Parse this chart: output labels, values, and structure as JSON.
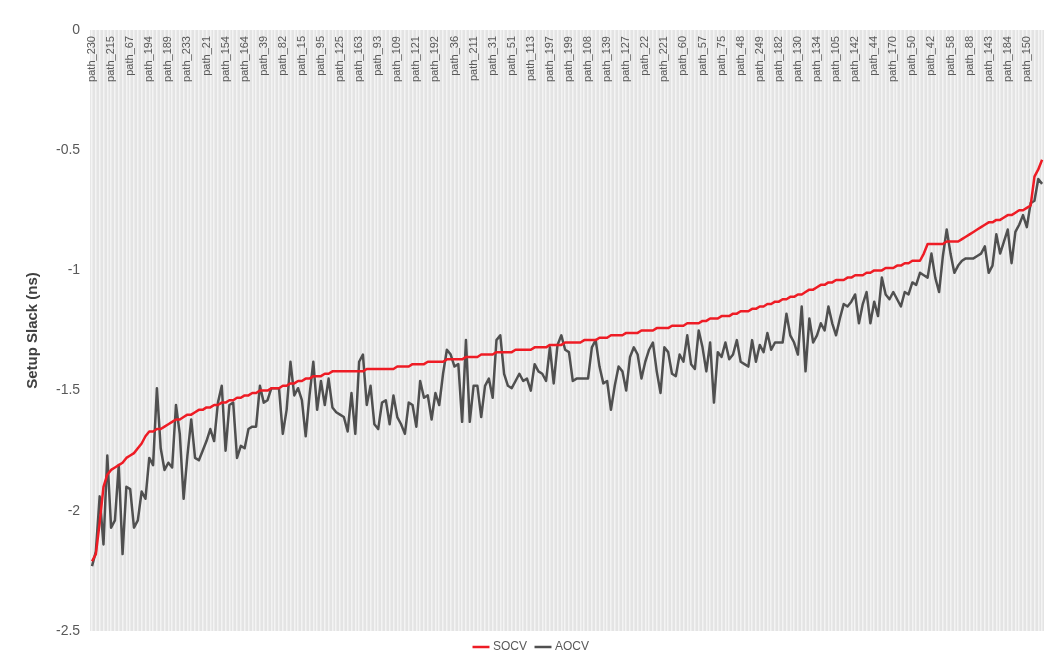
{
  "chart_data": {
    "type": "line",
    "ylabel": "Setup Slack (ns)",
    "ylim": [
      -2.5,
      0
    ],
    "yticks": [
      0,
      -0.5,
      -1,
      -1.5,
      -2,
      -2.5
    ],
    "grid": "x",
    "legend": "bottom",
    "marker": "none",
    "categories": [
      "path_230",
      null,
      null,
      null,
      null,
      "path_215",
      null,
      null,
      null,
      null,
      "path_67",
      null,
      null,
      null,
      null,
      "path_194",
      null,
      null,
      null,
      null,
      "path_189",
      null,
      null,
      null,
      null,
      "path_233",
      null,
      null,
      null,
      null,
      "path_21",
      null,
      null,
      null,
      null,
      "path_154",
      null,
      null,
      null,
      null,
      "path_164",
      null,
      null,
      null,
      null,
      "path_39",
      null,
      null,
      null,
      null,
      "path_82",
      null,
      null,
      null,
      null,
      "path_15",
      null,
      null,
      null,
      null,
      "path_95",
      null,
      null,
      null,
      null,
      "path_125",
      null,
      null,
      null,
      null,
      "path_163",
      null,
      null,
      null,
      null,
      "path_93",
      null,
      null,
      null,
      null,
      "path_109",
      null,
      null,
      null,
      null,
      "path_121",
      null,
      null,
      null,
      null,
      "path_192",
      null,
      null,
      null,
      null,
      "path_36",
      null,
      null,
      null,
      null,
      "path_211",
      null,
      null,
      null,
      null,
      "path_31",
      null,
      null,
      null,
      null,
      "path_51",
      null,
      null,
      null,
      null,
      "path_113",
      null,
      null,
      null,
      null,
      "path_197",
      null,
      null,
      null,
      null,
      "path_199",
      null,
      null,
      null,
      null,
      "path_108",
      null,
      null,
      null,
      null,
      "path_139",
      null,
      null,
      null,
      null,
      "path_127",
      null,
      null,
      null,
      null,
      "path_22",
      null,
      null,
      null,
      null,
      "path_221",
      null,
      null,
      null,
      null,
      "path_60",
      null,
      null,
      null,
      null,
      "path_57",
      null,
      null,
      null,
      null,
      "path_75",
      null,
      null,
      null,
      null,
      "path_48",
      null,
      null,
      null,
      null,
      "path_249",
      null,
      null,
      null,
      null,
      "path_182",
      null,
      null,
      null,
      null,
      "path_130",
      null,
      null,
      null,
      null,
      "path_134",
      null,
      null,
      null,
      null,
      "path_105",
      null,
      null,
      null,
      null,
      "path_142",
      null,
      null,
      null,
      null,
      "path_44",
      null,
      null,
      null,
      null,
      "path_170",
      null,
      null,
      null,
      null,
      "path_50",
      null,
      null,
      null,
      null,
      "path_42",
      null,
      null,
      null,
      null,
      "path_58",
      null,
      null,
      null,
      null,
      "path_88",
      null,
      null,
      null,
      null,
      "path_143",
      null,
      null,
      null,
      null,
      "path_184",
      null,
      null,
      null,
      null,
      "path_150",
      null,
      null,
      null,
      null
    ],
    "series": [
      {
        "name": "SOCV",
        "color": "#ee1c25",
        "values": [
          -2.21,
          -2.18,
          -2.05,
          -1.9,
          -1.85,
          -1.83,
          -1.82,
          -1.81,
          -1.8,
          -1.78,
          -1.77,
          -1.76,
          -1.74,
          -1.72,
          -1.69,
          -1.67,
          -1.67,
          -1.66,
          -1.66,
          -1.65,
          -1.64,
          -1.63,
          -1.62,
          -1.62,
          -1.61,
          -1.6,
          -1.6,
          -1.59,
          -1.58,
          -1.58,
          -1.57,
          -1.57,
          -1.56,
          -1.56,
          -1.55,
          -1.55,
          -1.54,
          -1.54,
          -1.53,
          -1.53,
          -1.52,
          -1.52,
          -1.51,
          -1.51,
          -1.5,
          -1.5,
          -1.5,
          -1.49,
          -1.49,
          -1.49,
          -1.48,
          -1.48,
          -1.47,
          -1.47,
          -1.46,
          -1.46,
          -1.45,
          -1.45,
          -1.44,
          -1.44,
          -1.44,
          -1.43,
          -1.43,
          -1.42,
          -1.42,
          -1.42,
          -1.42,
          -1.42,
          -1.42,
          -1.42,
          -1.42,
          -1.42,
          -1.41,
          -1.41,
          -1.41,
          -1.41,
          -1.41,
          -1.41,
          -1.41,
          -1.41,
          -1.4,
          -1.4,
          -1.4,
          -1.4,
          -1.39,
          -1.39,
          -1.39,
          -1.39,
          -1.38,
          -1.38,
          -1.38,
          -1.38,
          -1.38,
          -1.37,
          -1.37,
          -1.37,
          -1.37,
          -1.37,
          -1.36,
          -1.36,
          -1.36,
          -1.36,
          -1.35,
          -1.35,
          -1.35,
          -1.35,
          -1.34,
          -1.34,
          -1.34,
          -1.34,
          -1.34,
          -1.33,
          -1.33,
          -1.33,
          -1.33,
          -1.33,
          -1.32,
          -1.32,
          -1.32,
          -1.32,
          -1.31,
          -1.31,
          -1.31,
          -1.31,
          -1.3,
          -1.3,
          -1.3,
          -1.3,
          -1.3,
          -1.29,
          -1.29,
          -1.29,
          -1.29,
          -1.28,
          -1.28,
          -1.28,
          -1.27,
          -1.27,
          -1.27,
          -1.27,
          -1.26,
          -1.26,
          -1.26,
          -1.26,
          -1.25,
          -1.25,
          -1.25,
          -1.25,
          -1.24,
          -1.24,
          -1.24,
          -1.24,
          -1.23,
          -1.23,
          -1.23,
          -1.23,
          -1.22,
          -1.22,
          -1.22,
          -1.22,
          -1.21,
          -1.21,
          -1.2,
          -1.2,
          -1.2,
          -1.19,
          -1.19,
          -1.19,
          -1.18,
          -1.18,
          -1.17,
          -1.17,
          -1.17,
          -1.16,
          -1.16,
          -1.15,
          -1.15,
          -1.14,
          -1.14,
          -1.13,
          -1.13,
          -1.12,
          -1.12,
          -1.11,
          -1.11,
          -1.1,
          -1.1,
          -1.09,
          -1.08,
          -1.08,
          -1.07,
          -1.06,
          -1.06,
          -1.05,
          -1.05,
          -1.04,
          -1.04,
          -1.04,
          -1.03,
          -1.03,
          -1.02,
          -1.02,
          -1.02,
          -1.01,
          -1.01,
          -1.0,
          -1.0,
          -1.0,
          -0.99,
          -0.99,
          -0.99,
          -0.98,
          -0.98,
          -0.97,
          -0.97,
          -0.96,
          -0.96,
          -0.96,
          -0.93,
          -0.89,
          -0.89,
          -0.89,
          -0.89,
          -0.89,
          -0.88,
          -0.88,
          -0.88,
          -0.88,
          -0.87,
          -0.86,
          -0.85,
          -0.84,
          -0.83,
          -0.82,
          -0.81,
          -0.8,
          -0.8,
          -0.79,
          -0.79,
          -0.78,
          -0.77,
          -0.77,
          -0.76,
          -0.75,
          -0.75,
          -0.74,
          -0.73,
          -0.61,
          -0.58,
          -0.54
        ]
      },
      {
        "name": "AOCV",
        "color": "#505050",
        "values": [
          -2.23,
          -2.17,
          -1.94,
          -2.14,
          -1.77,
          -2.07,
          -2.04,
          -1.81,
          -2.18,
          -1.9,
          -1.91,
          -2.07,
          -2.04,
          -1.92,
          -1.95,
          -1.78,
          -1.81,
          -1.49,
          -1.74,
          -1.83,
          -1.8,
          -1.82,
          -1.56,
          -1.68,
          -1.95,
          -1.77,
          -1.62,
          -1.78,
          -1.79,
          -1.75,
          -1.71,
          -1.66,
          -1.71,
          -1.55,
          -1.48,
          -1.75,
          -1.56,
          -1.55,
          -1.78,
          -1.73,
          -1.74,
          -1.66,
          -1.65,
          -1.65,
          -1.48,
          -1.55,
          -1.54,
          -1.49,
          -1.49,
          -1.49,
          -1.68,
          -1.58,
          -1.38,
          -1.52,
          -1.49,
          -1.54,
          -1.69,
          -1.52,
          -1.38,
          -1.58,
          -1.46,
          -1.56,
          -1.45,
          -1.57,
          -1.59,
          -1.6,
          -1.61,
          -1.67,
          -1.51,
          -1.68,
          -1.38,
          -1.35,
          -1.56,
          -1.48,
          -1.64,
          -1.66,
          -1.55,
          -1.54,
          -1.64,
          -1.52,
          -1.61,
          -1.64,
          -1.68,
          -1.55,
          -1.56,
          -1.65,
          -1.46,
          -1.53,
          -1.52,
          -1.62,
          -1.51,
          -1.56,
          -1.43,
          -1.33,
          -1.35,
          -1.4,
          -1.39,
          -1.63,
          -1.29,
          -1.63,
          -1.48,
          -1.48,
          -1.61,
          -1.48,
          -1.45,
          -1.53,
          -1.29,
          -1.27,
          -1.43,
          -1.48,
          -1.49,
          -1.46,
          -1.43,
          -1.46,
          -1.45,
          -1.5,
          -1.39,
          -1.42,
          -1.43,
          -1.46,
          -1.32,
          -1.47,
          -1.31,
          -1.27,
          -1.33,
          -1.34,
          -1.46,
          -1.45,
          -1.45,
          -1.45,
          -1.45,
          -1.32,
          -1.29,
          -1.4,
          -1.47,
          -1.46,
          -1.58,
          -1.48,
          -1.4,
          -1.42,
          -1.5,
          -1.36,
          -1.32,
          -1.35,
          -1.45,
          -1.38,
          -1.33,
          -1.3,
          -1.42,
          -1.51,
          -1.32,
          -1.34,
          -1.43,
          -1.44,
          -1.35,
          -1.38,
          -1.27,
          -1.39,
          -1.41,
          -1.25,
          -1.32,
          -1.42,
          -1.3,
          -1.55,
          -1.34,
          -1.36,
          -1.3,
          -1.37,
          -1.35,
          -1.29,
          -1.38,
          -1.39,
          -1.4,
          -1.29,
          -1.38,
          -1.31,
          -1.34,
          -1.26,
          -1.33,
          -1.3,
          -1.3,
          -1.3,
          -1.18,
          -1.27,
          -1.3,
          -1.35,
          -1.15,
          -1.42,
          -1.2,
          -1.3,
          -1.27,
          -1.22,
          -1.25,
          -1.15,
          -1.22,
          -1.27,
          -1.2,
          -1.14,
          -1.15,
          -1.13,
          -1.1,
          -1.22,
          -1.14,
          -1.09,
          -1.22,
          -1.13,
          -1.19,
          -1.03,
          -1.1,
          -1.12,
          -1.09,
          -1.12,
          -1.15,
          -1.09,
          -1.1,
          -1.05,
          -1.06,
          -1.01,
          -1.02,
          -1.03,
          -0.93,
          -1.03,
          -1.09,
          -0.94,
          -0.83,
          -0.93,
          -1.01,
          -0.98,
          -0.96,
          -0.95,
          -0.95,
          -0.95,
          -0.94,
          -0.93,
          -0.9,
          -1.01,
          -0.98,
          -0.85,
          -0.93,
          -0.88,
          -0.83,
          -0.97,
          -0.84,
          -0.81,
          -0.77,
          -0.82,
          -0.72,
          -0.71,
          -0.62,
          -0.64
        ]
      }
    ]
  }
}
